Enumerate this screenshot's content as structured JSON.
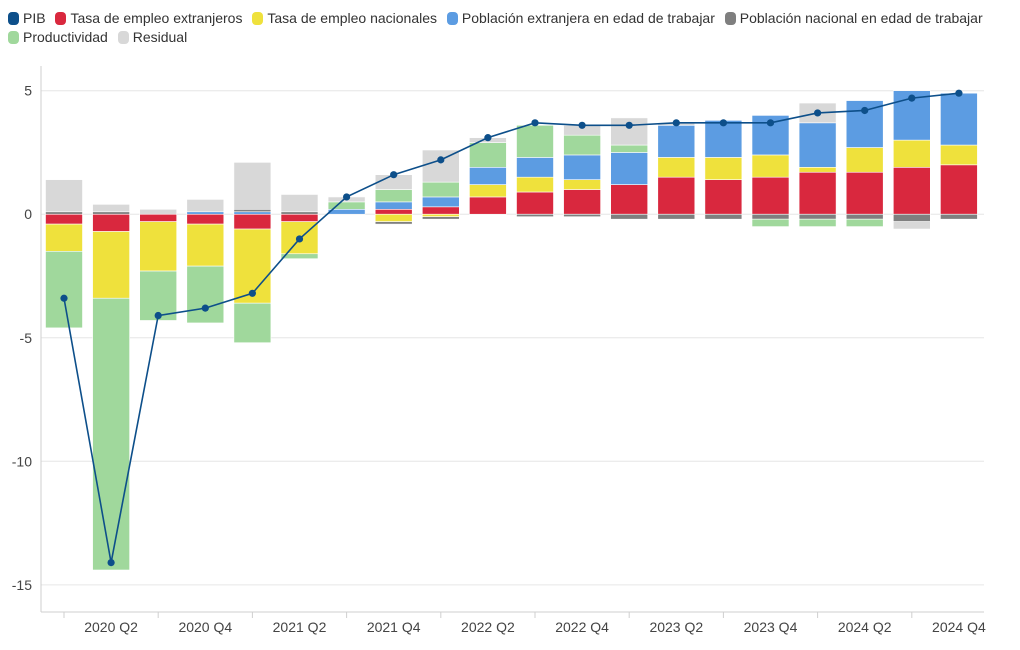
{
  "chart_data": {
    "type": "bar",
    "stacked": true,
    "categories": [
      "2020 Q1",
      "2020 Q2",
      "2020 Q3",
      "2020 Q4",
      "2021 Q1",
      "2021 Q2",
      "2021 Q3",
      "2021 Q4",
      "2022 Q1",
      "2022 Q2",
      "2022 Q3",
      "2022 Q4",
      "2023 Q1",
      "2023 Q2",
      "2023 Q3",
      "2023 Q4",
      "2024 Q1",
      "2024 Q2",
      "2024 Q3",
      "2024 Q4"
    ],
    "tick_labels": [
      "2020 Q2",
      "2020 Q4",
      "2021 Q2",
      "2021 Q4",
      "2022 Q2",
      "2022 Q4",
      "2023 Q2",
      "2023 Q4",
      "2024 Q2",
      "2024 Q4"
    ],
    "y_ticks": [
      5,
      0,
      -5,
      -10,
      -15
    ],
    "ylim": [
      -16.1,
      6.0
    ],
    "series": [
      {
        "name": "Tasa de empleo extranjeros",
        "color": "#d9283e",
        "values": [
          -0.4,
          -0.7,
          -0.3,
          -0.4,
          -0.6,
          -0.3,
          0.0,
          0.2,
          0.3,
          0.7,
          0.9,
          1.0,
          1.2,
          1.5,
          1.4,
          1.5,
          1.7,
          1.7,
          1.9,
          2.0
        ]
      },
      {
        "name": "Tasa de empleo nacionales",
        "color": "#efe13c",
        "values": [
          -1.1,
          -2.7,
          -2.0,
          -1.7,
          -3.0,
          -1.3,
          0.0,
          -0.3,
          -0.1,
          0.5,
          0.6,
          0.4,
          0.0,
          0.8,
          0.9,
          0.9,
          0.2,
          1.0,
          1.1,
          0.8
        ]
      },
      {
        "name": "Población extranjera en edad de trabajar",
        "color": "#5c9ce2",
        "values": [
          0.0,
          0.0,
          0.0,
          0.1,
          0.1,
          0.0,
          0.2,
          0.3,
          0.4,
          0.7,
          0.8,
          1.0,
          1.3,
          1.3,
          1.5,
          1.6,
          1.8,
          1.9,
          2.0,
          2.1
        ]
      },
      {
        "name": "Población nacional en edad de trabajar",
        "color": "#7f7f7f",
        "values": [
          0.1,
          0.1,
          0.0,
          0.0,
          0.1,
          0.1,
          0.0,
          -0.1,
          -0.1,
          0.0,
          -0.1,
          -0.1,
          -0.2,
          -0.2,
          -0.2,
          -0.2,
          -0.2,
          -0.2,
          -0.3,
          -0.2
        ]
      },
      {
        "name": "Productividad",
        "color": "#a0d89c",
        "values": [
          -3.1,
          -11.0,
          -2.0,
          -2.3,
          -1.6,
          -0.2,
          0.3,
          0.5,
          0.6,
          1.0,
          1.3,
          0.8,
          0.3,
          0.0,
          0.0,
          -0.3,
          -0.3,
          -0.3,
          0.0,
          0.0
        ]
      },
      {
        "name": "Residual",
        "color": "#d8d8d8",
        "values": [
          1.3,
          0.3,
          0.2,
          0.5,
          1.9,
          0.7,
          0.2,
          0.6,
          1.3,
          0.2,
          0.0,
          0.4,
          1.1,
          0.1,
          0.0,
          0.0,
          0.8,
          0.0,
          -0.3,
          0.0
        ]
      }
    ],
    "line_series": {
      "name": "PIB",
      "color": "#0d4f8a",
      "values": [
        -3.4,
        -14.1,
        -4.1,
        -3.8,
        -3.2,
        -1.0,
        0.7,
        1.6,
        2.2,
        3.1,
        3.7,
        3.6,
        3.6,
        3.7,
        3.7,
        3.7,
        4.1,
        4.2,
        4.7,
        4.9
      ]
    },
    "legend": [
      {
        "name": "PIB",
        "color": "#0d4f8a"
      },
      {
        "name": "Tasa de empleo extranjeros",
        "color": "#d9283e"
      },
      {
        "name": "Tasa de empleo nacionales",
        "color": "#efe13c"
      },
      {
        "name": "Población extranjera en edad de trabajar",
        "color": "#5c9ce2"
      },
      {
        "name": "Población nacional en edad de trabajar",
        "color": "#7f7f7f"
      },
      {
        "name": "Productividad",
        "color": "#a0d89c"
      },
      {
        "name": "Residual",
        "color": "#d8d8d8"
      }
    ],
    "legend_position": "top-left",
    "title": "",
    "xlabel": "",
    "ylabel": ""
  }
}
